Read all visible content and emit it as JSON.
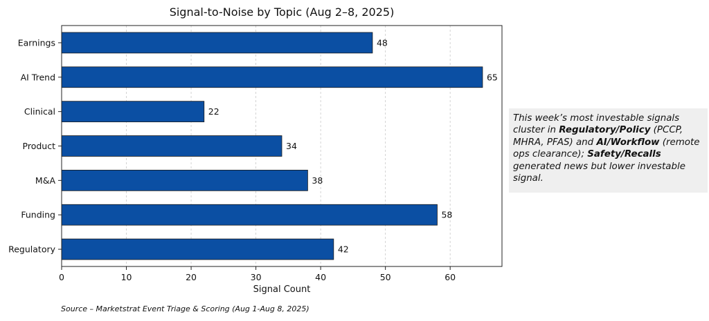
{
  "chart_data": {
    "type": "bar",
    "orientation": "horizontal",
    "title": "Signal-to-Noise by Topic (Aug 2–8, 2025)",
    "xlabel": "Signal Count",
    "ylabel": "",
    "categories": [
      "Earnings",
      "AI Trend",
      "Clinical",
      "Product",
      "M&A",
      "Funding",
      "Regulatory"
    ],
    "values": [
      48,
      65,
      22,
      34,
      38,
      58,
      42
    ],
    "xlim": [
      0,
      68
    ],
    "xticks": [
      0,
      10,
      20,
      30,
      40,
      50,
      60
    ],
    "grid": "vertical dashed",
    "bar_color": "#0b4fa3",
    "bar_edge_color": "#1a1a1a",
    "data_labels": true
  },
  "callout": {
    "seg1": "This week’s most investable signals cluster in ",
    "seg2": "Regulatory/Policy",
    "seg3": " (PCCP, MHRA, PFAS) and ",
    "seg4": "AI/Workflow",
    "seg5": " (remote ops clearance); ",
    "seg6": "Safety/Recalls",
    "seg7": " generated news but lower investable signal."
  },
  "source": "Source – Marketstrat Event Triage & Scoring (Aug 1-Aug 8, 2025)"
}
